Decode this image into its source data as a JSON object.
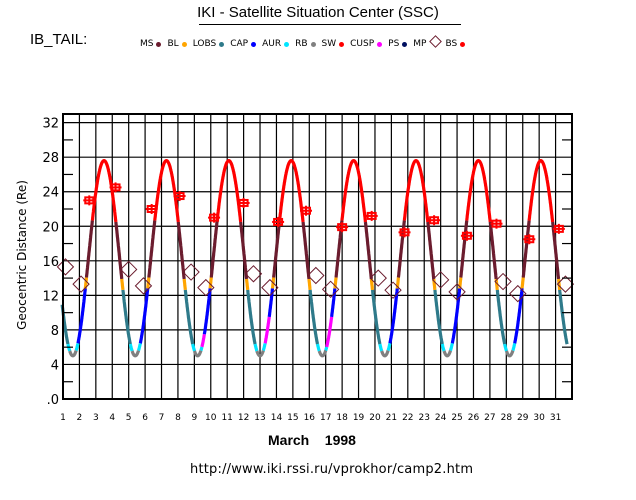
{
  "header": {
    "title": "IKI - Satellite Situation Center (SSC)",
    "satellite_label": "IB_TAIL:"
  },
  "legend": [
    {
      "label": "MS",
      "color": "#6b1c2e",
      "shape": "dot"
    },
    {
      "label": "BL",
      "color": "#ffa500",
      "shape": "dot"
    },
    {
      "label": "LOBS",
      "color": "#2e7a8a",
      "shape": "dot"
    },
    {
      "label": "CAP",
      "color": "#0000ff",
      "shape": "dot"
    },
    {
      "label": "AUR",
      "color": "#00e5ff",
      "shape": "dot"
    },
    {
      "label": "RB",
      "color": "#808080",
      "shape": "dot"
    },
    {
      "label": "SW",
      "color": "#ff0000",
      "shape": "dot"
    },
    {
      "label": "CUSP",
      "color": "#ff00ff",
      "shape": "dot"
    },
    {
      "label": "PS",
      "color": "#001060",
      "shape": "dot"
    },
    {
      "label": "MP",
      "color": "#6b1c2e",
      "shape": "diamond"
    },
    {
      "label": "BS",
      "color": "#ff0000",
      "shape": "cross"
    }
  ],
  "footer": {
    "month_label": "March    1998",
    "url": "http://www.iki.rssi.ru/vprokhor/camp2.htm"
  },
  "chart_data": {
    "type": "line",
    "title": "IKI - Satellite Situation Center (SSC)",
    "xlabel": "March 1998",
    "ylabel": "Geocentric Distance (Re)",
    "xlim": [
      1,
      32
    ],
    "ylim": [
      0,
      33
    ],
    "x_ticks": [
      "1",
      "2",
      "3",
      "4",
      "5",
      "6",
      "7",
      "8",
      "9",
      "10",
      "11",
      "12",
      "13",
      "14",
      "15",
      "16",
      "17",
      "18",
      "19",
      "20",
      "21",
      "22",
      "23",
      "24",
      "25",
      "26",
      "27",
      "28",
      "29",
      "30",
      "31"
    ],
    "y_ticks": [
      0,
      4,
      8,
      12,
      16,
      20,
      24,
      28,
      32
    ],
    "y_tick_labels": [
      ".0",
      "4",
      "8",
      "12",
      "16",
      "20",
      "24",
      "28",
      "32"
    ],
    "grid": true,
    "orbit": {
      "apogee_re": 27.6,
      "perigee_re": 5.0,
      "period_days": 3.8,
      "first_perigee_day": 1.6,
      "start_day": 0.95,
      "end_day": 31.7
    },
    "region_thresholds_re": {
      "SW_above": 20.5,
      "MS_above": 14.0,
      "BL_above": 12.8
    },
    "bow_shock_crossings": [
      {
        "day": 2.6,
        "r": 23.0
      },
      {
        "day": 4.2,
        "r": 24.5
      },
      {
        "day": 6.4,
        "r": 22.0
      },
      {
        "day": 8.1,
        "r": 23.5
      },
      {
        "day": 10.2,
        "r": 21.0
      },
      {
        "day": 12.0,
        "r": 22.7
      },
      {
        "day": 14.1,
        "r": 20.5
      },
      {
        "day": 15.8,
        "r": 21.8
      },
      {
        "day": 18.0,
        "r": 19.9
      },
      {
        "day": 19.8,
        "r": 21.2
      },
      {
        "day": 21.8,
        "r": 19.3
      },
      {
        "day": 23.6,
        "r": 20.7
      },
      {
        "day": 25.6,
        "r": 18.9
      },
      {
        "day": 27.4,
        "r": 20.3
      },
      {
        "day": 29.4,
        "r": 18.5
      },
      {
        "day": 31.2,
        "r": 19.7
      }
    ],
    "magnetopause_crossings": [
      {
        "day": 1.15,
        "r": 15.3
      },
      {
        "day": 2.1,
        "r": 13.3
      },
      {
        "day": 5.0,
        "r": 15.0
      },
      {
        "day": 5.9,
        "r": 13.1
      },
      {
        "day": 8.8,
        "r": 14.7
      },
      {
        "day": 9.7,
        "r": 12.9
      },
      {
        "day": 12.6,
        "r": 14.5
      },
      {
        "day": 13.6,
        "r": 12.9
      },
      {
        "day": 16.4,
        "r": 14.3
      },
      {
        "day": 17.3,
        "r": 12.7
      },
      {
        "day": 20.2,
        "r": 14.0
      },
      {
        "day": 21.1,
        "r": 12.6
      },
      {
        "day": 24.0,
        "r": 13.8
      },
      {
        "day": 25.0,
        "r": 12.4
      },
      {
        "day": 27.8,
        "r": 13.6
      },
      {
        "day": 28.7,
        "r": 12.2
      },
      {
        "day": 31.6,
        "r": 13.3
      }
    ],
    "cusp_segments_days": [
      [
        9.45,
        9.6
      ],
      [
        13.3,
        13.55
      ],
      [
        17.05,
        17.35
      ]
    ]
  }
}
